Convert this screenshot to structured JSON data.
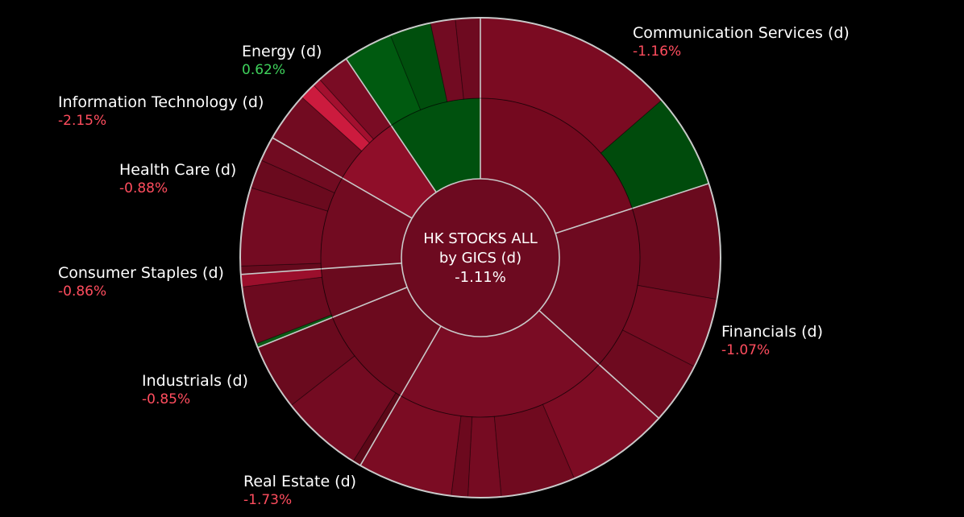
{
  "chart_data": {
    "type": "sunburst",
    "center": {
      "title_line1": "HK STOCKS ALL",
      "title_line2": "by GICS (d)",
      "value": "-1.11%"
    },
    "colors": {
      "background": "#000000",
      "negative_text": "#ff4d5e",
      "positive_text": "#3fd35c",
      "divider": "#c9c9c9"
    },
    "sectors": [
      {
        "name": "Communication Services (d)",
        "change": "-1.16%",
        "trend": "down"
      },
      {
        "name": "Financials (d)",
        "change": "-1.07%",
        "trend": "down"
      },
      {
        "name": "Real Estate (d)",
        "change": "-1.73%",
        "trend": "down"
      },
      {
        "name": "Industrials (d)",
        "change": "-0.85%",
        "trend": "down"
      },
      {
        "name": "Consumer Staples (d)",
        "change": "-0.86%",
        "trend": "down"
      },
      {
        "name": "Health Care (d)",
        "change": "-0.88%",
        "trend": "down"
      },
      {
        "name": "Information Technology (d)",
        "change": "-2.15%",
        "trend": "down"
      },
      {
        "name": "Energy (d)",
        "change": "0.62%",
        "trend": "up"
      }
    ]
  }
}
